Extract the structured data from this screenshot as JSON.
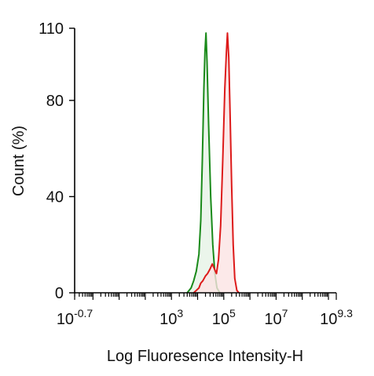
{
  "chart_data": {
    "type": "area",
    "xlabel": "Log Fluoresence Intensity-H",
    "ylabel": "Count  (%)",
    "x_scale": "log10",
    "xlim": [
      -0.7,
      9.3
    ],
    "ylim": [
      0,
      110
    ],
    "x_ticks": [
      {
        "exp": -0.7,
        "base": "10",
        "power": "-0.7"
      },
      {
        "exp": 3,
        "base": "10",
        "power": "3"
      },
      {
        "exp": 5,
        "base": "10",
        "power": "5"
      },
      {
        "exp": 7,
        "base": "10",
        "power": "7"
      },
      {
        "exp": 9.3,
        "base": "10",
        "power": "9.3"
      }
    ],
    "y_ticks": [
      0,
      40,
      80,
      110
    ],
    "grid": false,
    "series": [
      {
        "color": "#1a8a1a",
        "fill": "#e6f2e6",
        "points": [
          [
            3.6,
            0
          ],
          [
            3.75,
            2
          ],
          [
            3.85,
            5
          ],
          [
            3.95,
            9
          ],
          [
            4.05,
            16
          ],
          [
            4.12,
            30
          ],
          [
            4.18,
            55
          ],
          [
            4.24,
            85
          ],
          [
            4.28,
            100
          ],
          [
            4.32,
            108
          ],
          [
            4.36,
            96
          ],
          [
            4.42,
            70
          ],
          [
            4.5,
            40
          ],
          [
            4.58,
            20
          ],
          [
            4.66,
            8
          ],
          [
            4.74,
            2
          ],
          [
            4.85,
            0
          ]
        ]
      },
      {
        "color": "#dd1a1a",
        "fill": "#fbe4e4",
        "points": [
          [
            3.85,
            0
          ],
          [
            3.95,
            1
          ],
          [
            4.05,
            2
          ],
          [
            4.12,
            4
          ],
          [
            4.2,
            5
          ],
          [
            4.3,
            7
          ],
          [
            4.38,
            8
          ],
          [
            4.48,
            10
          ],
          [
            4.56,
            12
          ],
          [
            4.64,
            10
          ],
          [
            4.72,
            8
          ],
          [
            4.8,
            14
          ],
          [
            4.88,
            28
          ],
          [
            4.96,
            55
          ],
          [
            5.04,
            85
          ],
          [
            5.1,
            100
          ],
          [
            5.14,
            108
          ],
          [
            5.19,
            98
          ],
          [
            5.24,
            75
          ],
          [
            5.3,
            45
          ],
          [
            5.36,
            20
          ],
          [
            5.42,
            6
          ],
          [
            5.5,
            1
          ],
          [
            5.58,
            0
          ]
        ]
      }
    ]
  }
}
